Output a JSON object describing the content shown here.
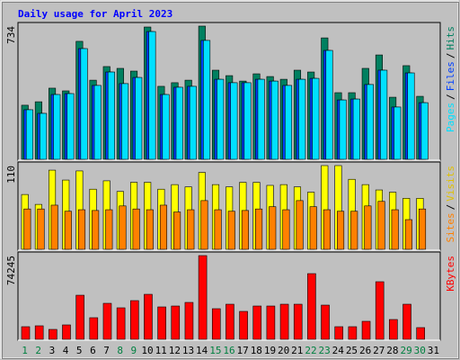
{
  "title": "Daily usage for April 2023",
  "chart_data": [
    {
      "type": "bar",
      "ylim": [
        0,
        734
      ],
      "yticks": [
        734
      ],
      "legend_separator": "/",
      "series": [
        {
          "name": "Hits",
          "color": "#008060",
          "values": [
            298,
            317,
            392,
            377,
            650,
            436,
            511,
            501,
            486,
            729,
            402,
            422,
            436,
            734,
            491,
            461,
            431,
            471,
            456,
            441,
            491,
            481,
            669,
            367,
            367,
            501,
            575,
            342,
            516,
            347,
            null
          ]
        },
        {
          "name": "Files",
          "color": "#0040ff",
          "values": [
            273,
            253,
            357,
            362,
            610,
            407,
            481,
            417,
            451,
            704,
            357,
            397,
            402,
            655,
            441,
            422,
            422,
            441,
            431,
            407,
            441,
            446,
            600,
            327,
            332,
            412,
            491,
            288,
            476,
            312,
            null
          ]
        },
        {
          "name": "Pages",
          "color": "#00e0ff",
          "values": [
            273,
            253,
            357,
            362,
            610,
            407,
            481,
            417,
            451,
            704,
            357,
            397,
            402,
            655,
            441,
            422,
            422,
            441,
            431,
            407,
            441,
            446,
            600,
            327,
            332,
            412,
            491,
            288,
            476,
            312,
            null
          ]
        }
      ]
    },
    {
      "type": "bar",
      "ylim": [
        0,
        110
      ],
      "yticks": [
        110
      ],
      "legend_separator": "/",
      "series": [
        {
          "name": "Visits",
          "color": "#ffff00",
          "values": [
            72,
            59,
            104,
            91,
            103,
            79,
            90,
            76,
            88,
            88,
            79,
            85,
            82,
            101,
            85,
            82,
            88,
            88,
            84,
            85,
            82,
            75,
            110,
            110,
            92,
            85,
            78,
            75,
            67,
            67,
            null
          ]
        },
        {
          "name": "Sites",
          "color": "#ff8000",
          "values": [
            53,
            53,
            58,
            50,
            52,
            51,
            52,
            57,
            53,
            52,
            58,
            49,
            52,
            64,
            52,
            50,
            51,
            53,
            56,
            52,
            64,
            56,
            52,
            50,
            50,
            57,
            63,
            52,
            39,
            53,
            null
          ]
        }
      ]
    },
    {
      "type": "bar",
      "ylim": [
        0,
        74245
      ],
      "yticks": [
        74245
      ],
      "legend_separator": "/",
      "categories": [
        "1",
        "2",
        "3",
        "4",
        "5",
        "6",
        "7",
        "8",
        "9",
        "10",
        "11",
        "12",
        "13",
        "14",
        "15",
        "16",
        "17",
        "18",
        "19",
        "20",
        "21",
        "22",
        "23",
        "24",
        "25",
        "26",
        "27",
        "28",
        "29",
        "30",
        "31"
      ],
      "label_colors": [
        "#008040",
        "#008040",
        "#000000",
        "#000000",
        "#000000",
        "#000000",
        "#000000",
        "#008040",
        "#008040",
        "#000000",
        "#000000",
        "#000000",
        "#000000",
        "#000000",
        "#008040",
        "#008040",
        "#000000",
        "#000000",
        "#000000",
        "#000000",
        "#000000",
        "#008040",
        "#008040",
        "#000000",
        "#000000",
        "#000000",
        "#000000",
        "#000000",
        "#008040",
        "#008040",
        "#000000"
      ],
      "series": [
        {
          "name": "KBytes",
          "color": "#ff0000",
          "values": [
            11172,
            11970,
            8778,
            12768,
            39102,
            19152,
            31920,
            27930,
            34314,
            39900,
            28728,
            29526,
            32718,
            74245,
            27132,
            31122,
            24738,
            29526,
            29526,
            31122,
            31122,
            58254,
            30324,
            11172,
            11172,
            15960,
            51072,
            17556,
            31122,
            10374,
            null
          ]
        }
      ]
    }
  ]
}
